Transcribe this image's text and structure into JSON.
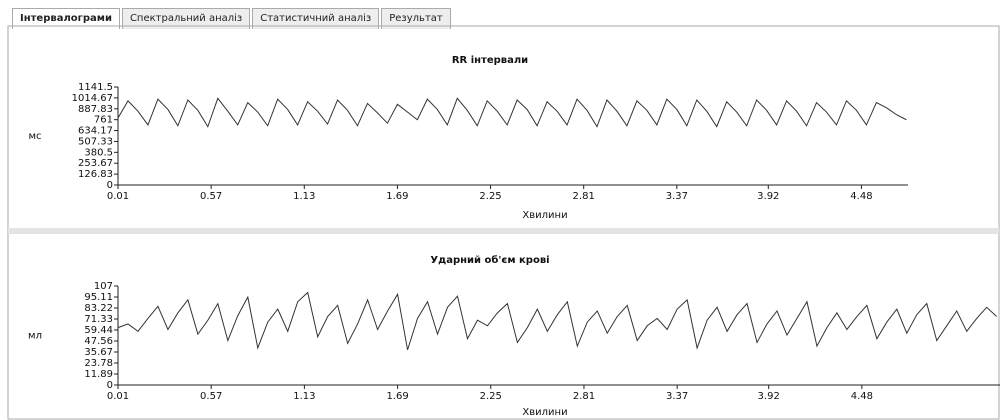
{
  "tabs": [
    "Інтервалограми",
    "Спектральний аналіз",
    "Статистичний аналіз",
    "Результат"
  ],
  "chart_data": [
    {
      "type": "line",
      "title": "RR інтервали",
      "x_label": "Хвилини",
      "y_label": "мс",
      "xlim": [
        0.01,
        4.76
      ],
      "xticks": [
        0.01,
        0.57,
        1.13,
        1.69,
        2.25,
        2.81,
        3.37,
        3.92,
        4.48
      ],
      "ylim": [
        0,
        1141.5
      ],
      "yticks": [
        0,
        126.83,
        253.67,
        380.5,
        507.33,
        634.17,
        761,
        887.83,
        1014.67,
        1141.5
      ],
      "x": [
        0.01,
        0.07,
        0.13,
        0.19,
        0.25,
        0.31,
        0.37,
        0.43,
        0.49,
        0.55,
        0.61,
        0.67,
        0.73,
        0.79,
        0.85,
        0.91,
        0.97,
        1.03,
        1.09,
        1.15,
        1.21,
        1.27,
        1.33,
        1.39,
        1.45,
        1.51,
        1.57,
        1.63,
        1.69,
        1.75,
        1.81,
        1.87,
        1.93,
        1.99,
        2.05,
        2.11,
        2.17,
        2.23,
        2.29,
        2.35,
        2.41,
        2.47,
        2.53,
        2.59,
        2.65,
        2.71,
        2.77,
        2.83,
        2.89,
        2.95,
        3.01,
        3.07,
        3.13,
        3.19,
        3.25,
        3.31,
        3.37,
        3.43,
        3.49,
        3.55,
        3.61,
        3.67,
        3.73,
        3.79,
        3.85,
        3.91,
        3.97,
        4.03,
        4.09,
        4.15,
        4.21,
        4.27,
        4.33,
        4.39,
        4.45,
        4.51,
        4.57,
        4.63,
        4.69,
        4.75
      ],
      "series": [
        {
          "color": "#333333",
          "values": [
            780,
            980,
            860,
            700,
            1000,
            880,
            690,
            990,
            870,
            680,
            1010,
            860,
            700,
            960,
            850,
            690,
            1000,
            880,
            700,
            970,
            860,
            710,
            990,
            870,
            690,
            950,
            840,
            720,
            940,
            850,
            760,
            1000,
            880,
            700,
            1010,
            870,
            690,
            980,
            860,
            700,
            990,
            880,
            690,
            970,
            860,
            700,
            1000,
            870,
            680,
            990,
            860,
            690,
            980,
            870,
            700,
            1000,
            880,
            690,
            990,
            860,
            680,
            970,
            850,
            690,
            990,
            870,
            700,
            980,
            860,
            690,
            960,
            850,
            700,
            980,
            870,
            700,
            960,
            900,
            820,
            760
          ]
        }
      ]
    },
    {
      "type": "line",
      "title": "Ударний об'єм крові",
      "x_label": "Хвилини",
      "y_label": "мл",
      "xlim": [
        0.01,
        5.31
      ],
      "xticks": [
        0.01,
        0.57,
        1.13,
        1.69,
        2.25,
        2.81,
        3.37,
        3.92,
        4.48
      ],
      "ylim": [
        0,
        107
      ],
      "yticks": [
        0,
        11.89,
        23.78,
        35.67,
        47.56,
        59.44,
        71.33,
        83.22,
        95.11,
        107
      ],
      "x": [
        0.01,
        0.07,
        0.13,
        0.19,
        0.25,
        0.31,
        0.37,
        0.43,
        0.49,
        0.55,
        0.61,
        0.67,
        0.73,
        0.79,
        0.85,
        0.91,
        0.97,
        1.03,
        1.09,
        1.15,
        1.21,
        1.27,
        1.33,
        1.39,
        1.45,
        1.51,
        1.57,
        1.63,
        1.69,
        1.75,
        1.81,
        1.87,
        1.93,
        1.99,
        2.05,
        2.11,
        2.17,
        2.23,
        2.29,
        2.35,
        2.41,
        2.47,
        2.53,
        2.59,
        2.65,
        2.71,
        2.77,
        2.83,
        2.89,
        2.95,
        3.01,
        3.07,
        3.13,
        3.19,
        3.25,
        3.31,
        3.37,
        3.43,
        3.49,
        3.55,
        3.61,
        3.67,
        3.73,
        3.79,
        3.85,
        3.91,
        3.97,
        4.03,
        4.09,
        4.15,
        4.21,
        4.27,
        4.33,
        4.39,
        4.45,
        4.51,
        4.57,
        4.63,
        4.69,
        4.75,
        4.81,
        4.87,
        4.93,
        4.99,
        5.05,
        5.11,
        5.17,
        5.23,
        5.29
      ],
      "series": [
        {
          "color": "#333333",
          "values": [
            62,
            66,
            58,
            72,
            85,
            60,
            78,
            92,
            55,
            70,
            88,
            48,
            75,
            95,
            40,
            68,
            82,
            58,
            90,
            100,
            52,
            74,
            86,
            45,
            66,
            92,
            60,
            80,
            98,
            38,
            72,
            90,
            55,
            84,
            96,
            50,
            70,
            64,
            78,
            88,
            46,
            62,
            82,
            58,
            76,
            90,
            42,
            68,
            80,
            56,
            74,
            86,
            48,
            64,
            72,
            60,
            82,
            92,
            40,
            70,
            84,
            58,
            76,
            88,
            46,
            66,
            80,
            54,
            72,
            90,
            42,
            62,
            78,
            60,
            74,
            86,
            50,
            68,
            82,
            56,
            76,
            88,
            48,
            64,
            80,
            58,
            72,
            84,
            74
          ]
        }
      ]
    }
  ]
}
